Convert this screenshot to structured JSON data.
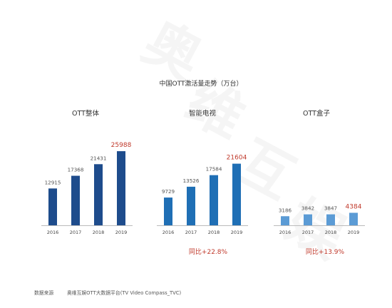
{
  "watermark": {
    "text": "奥维互娱"
  },
  "source": {
    "label": "数据来源",
    "text": "奥维互娱OTT大数据平台(TV Video Compass_TVC)"
  },
  "colors": {
    "ott_bar": "#1e4c8c",
    "tv_bar": "#1f6fb5",
    "box_bar": "#5b9bd5",
    "highlight": "#c0392b",
    "axis": "#bbbbbb",
    "watermark": "#eeeeee"
  },
  "chart_data": {
    "type": "bar",
    "title": "中国OTT激活量走势（万台）",
    "categories": [
      "2016",
      "2017",
      "2018",
      "2019"
    ],
    "groups": [
      {
        "name": "OTT整体",
        "values": [
          12915,
          17368,
          21431,
          25988
        ],
        "growth": ""
      },
      {
        "name": "智能电视",
        "values": [
          9729,
          13526,
          17584,
          21604
        ],
        "growth": "同比+22.8%"
      },
      {
        "name": "OTT盒子",
        "values": [
          3186,
          3842,
          3847,
          4384
        ],
        "growth": "同比+13.9%"
      }
    ],
    "highlight_index": 3,
    "ylim": [
      0,
      26000
    ],
    "grid": false,
    "legend": "none"
  }
}
